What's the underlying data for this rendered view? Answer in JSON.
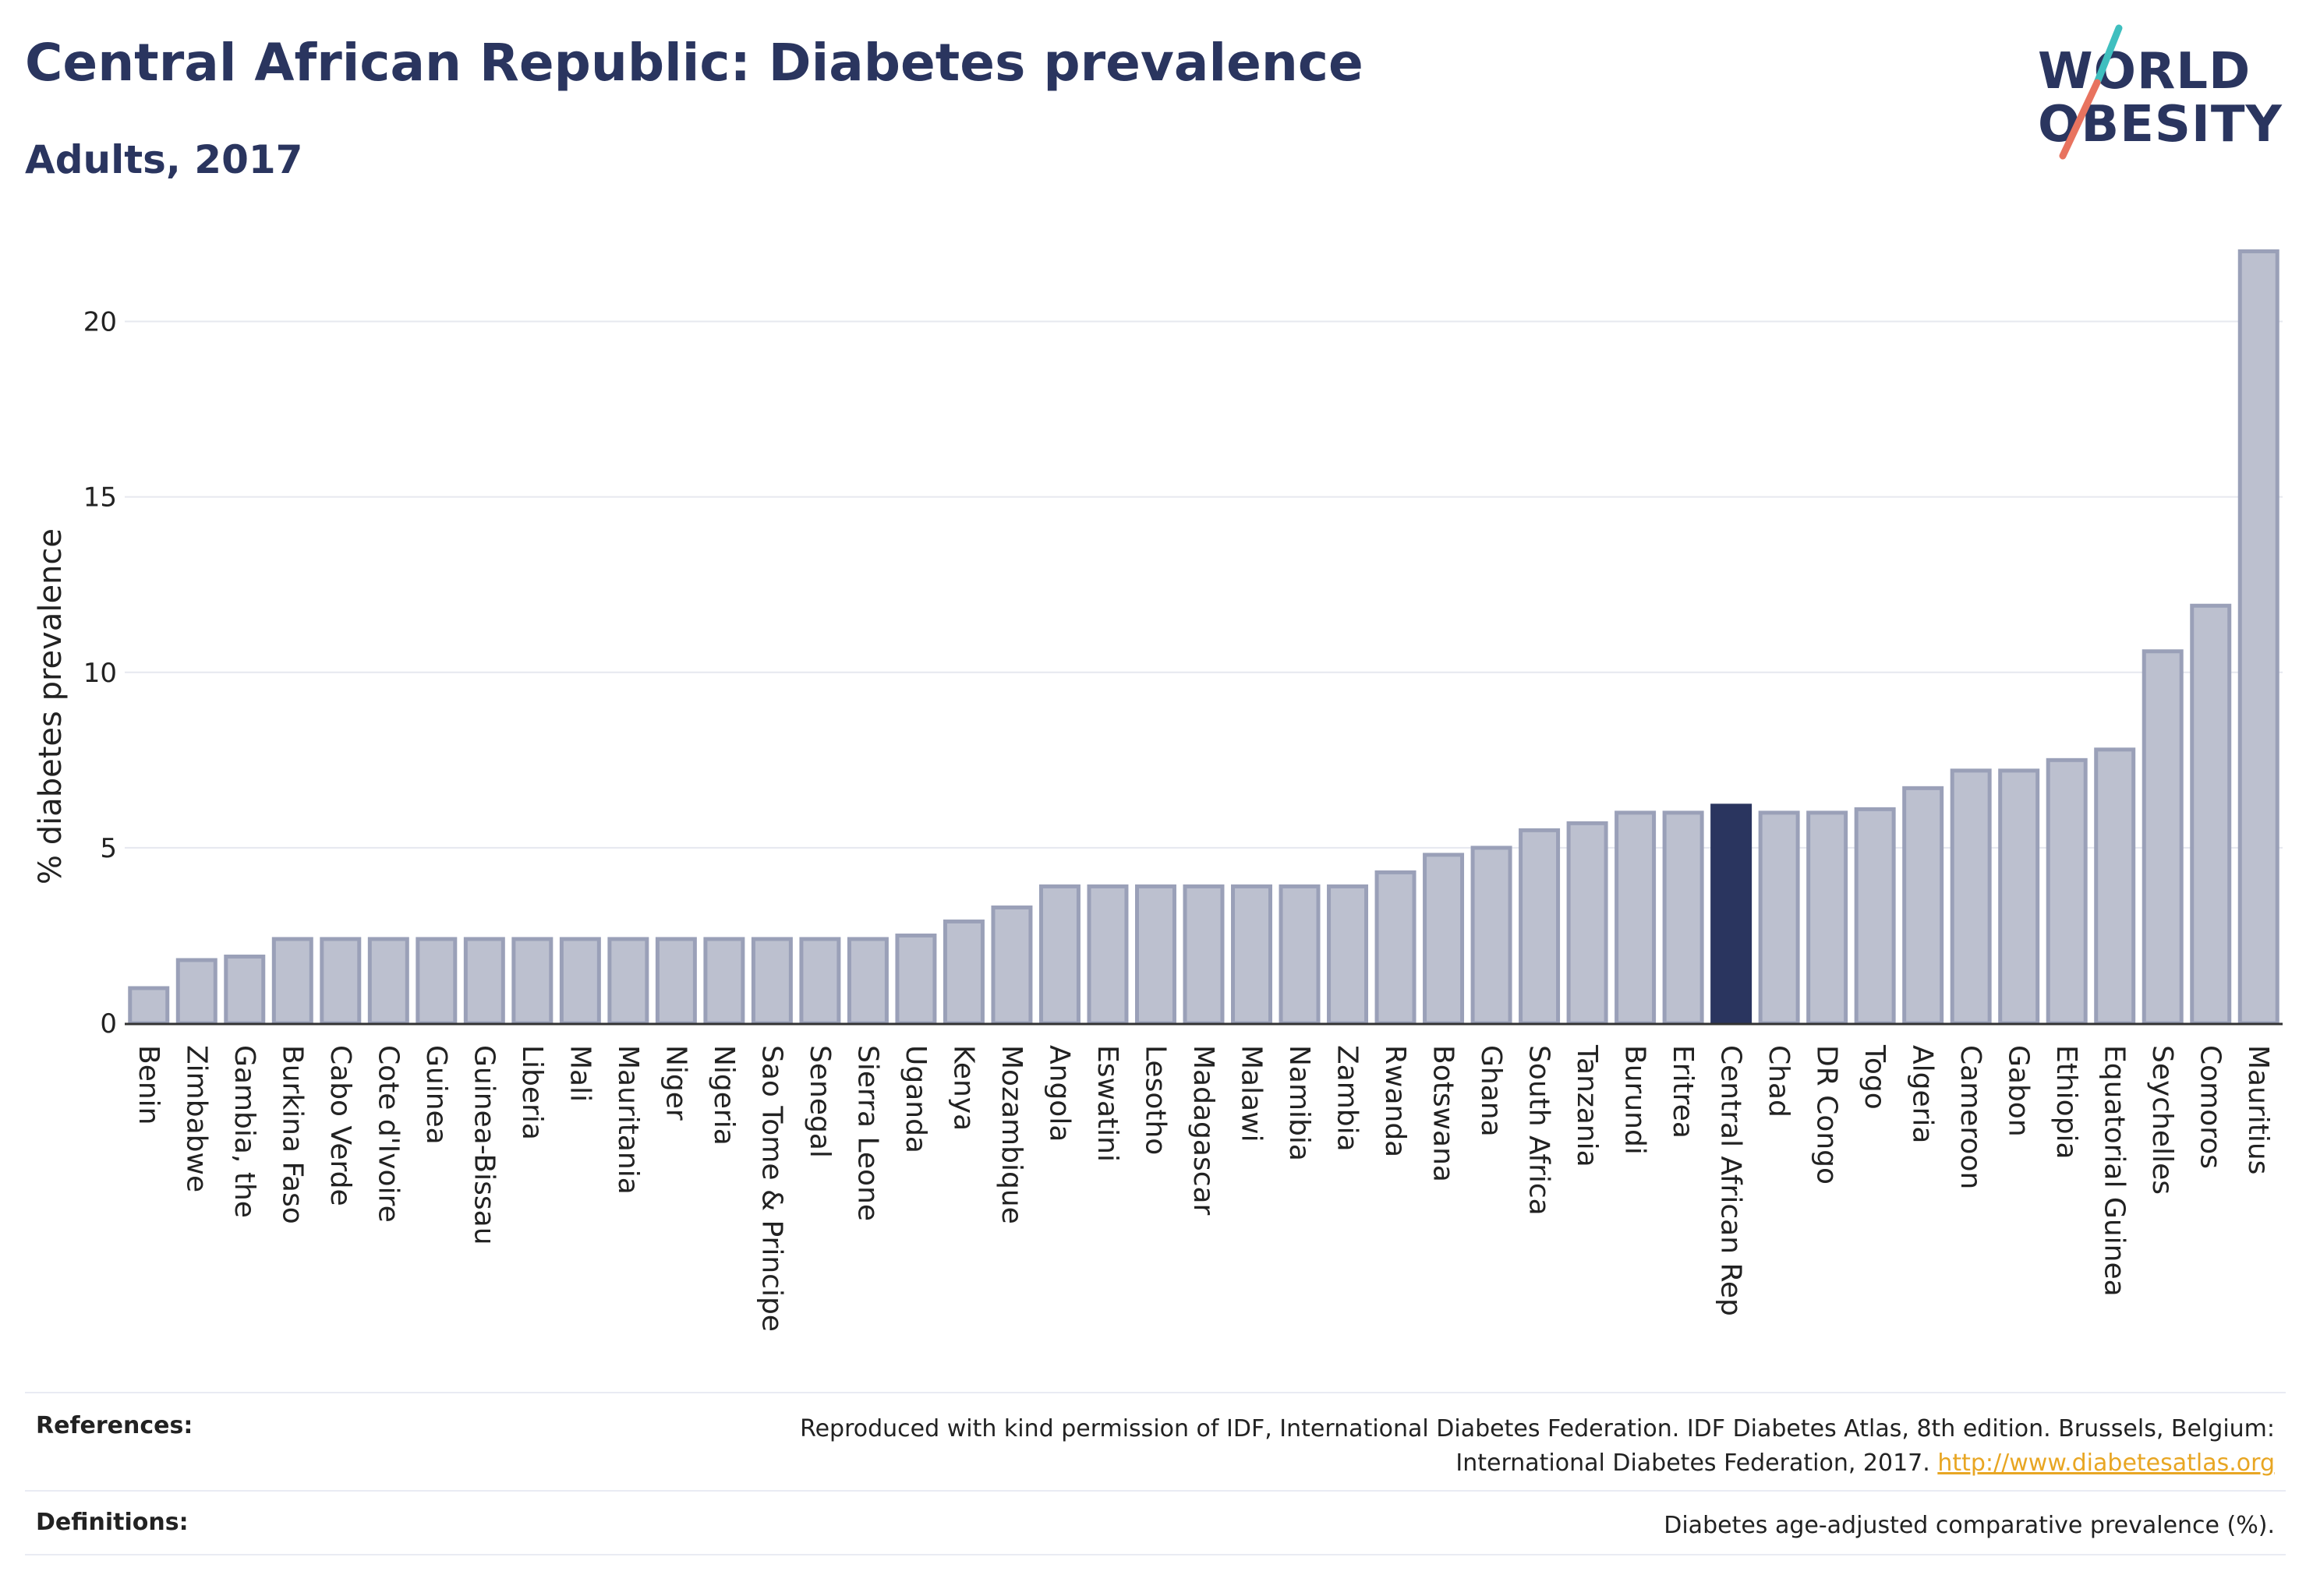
{
  "title": "Central African Republic: Diabetes prevalence",
  "subtitle": "Adults, 2017",
  "logo": {
    "line1": "WORLD",
    "line2": "OBESITY"
  },
  "colors": {
    "bar": "#bcc0cf",
    "bar_edge": "#9aa0b8",
    "highlight": "#2a355f",
    "grid": "#e6e8ef",
    "accent_teal": "#3fbfbf",
    "accent_coral": "#e8735f",
    "link": "#e8a623"
  },
  "chart_data": {
    "type": "bar",
    "ylabel": "% diabetes prevalence",
    "xlabel": "",
    "ylim": [
      0,
      22.5
    ],
    "yticks": [
      0,
      5,
      10,
      15,
      20
    ],
    "grid": true,
    "highlight": "Central African Rep",
    "categories": [
      "Benin",
      "Zimbabwe",
      "Gambia, the",
      "Burkina Faso",
      "Cabo Verde",
      "Cote d'Ivoire",
      "Guinea",
      "Guinea-Bissau",
      "Liberia",
      "Mali",
      "Mauritania",
      "Niger",
      "Nigeria",
      "Sao Tome & Principe",
      "Senegal",
      "Sierra Leone",
      "Uganda",
      "Kenya",
      "Mozambique",
      "Angola",
      "Eswatini",
      "Lesotho",
      "Madagascar",
      "Malawi",
      "Namibia",
      "Zambia",
      "Rwanda",
      "Botswana",
      "Ghana",
      "South Africa",
      "Tanzania",
      "Burundi",
      "Eritrea",
      "Central African Rep",
      "Chad",
      "DR Congo",
      "Togo",
      "Algeria",
      "Cameroon",
      "Gabon",
      "Ethiopia",
      "Equatorial Guinea",
      "Seychelles",
      "Comoros",
      "Mauritius"
    ],
    "values": [
      1.0,
      1.8,
      1.9,
      2.4,
      2.4,
      2.4,
      2.4,
      2.4,
      2.4,
      2.4,
      2.4,
      2.4,
      2.4,
      2.4,
      2.4,
      2.4,
      2.5,
      2.9,
      3.3,
      3.9,
      3.9,
      3.9,
      3.9,
      3.9,
      3.9,
      3.9,
      4.3,
      4.8,
      5.0,
      5.5,
      5.7,
      6.0,
      6.0,
      6.2,
      6.0,
      6.0,
      6.1,
      6.7,
      7.2,
      7.2,
      7.5,
      7.8,
      10.6,
      11.9,
      22.0
    ]
  },
  "footer": {
    "references_label": "References:",
    "references_text_1": "Reproduced with kind permission of IDF, International Diabetes Federation. IDF Diabetes Atlas, 8th edition. Brussels, Belgium:",
    "references_text_2": "International Diabetes Federation, 2017.",
    "references_link": "http://www.diabetesatlas.org",
    "definitions_label": "Definitions:",
    "definitions_text": "Diabetes age-adjusted comparative prevalence (%)."
  }
}
